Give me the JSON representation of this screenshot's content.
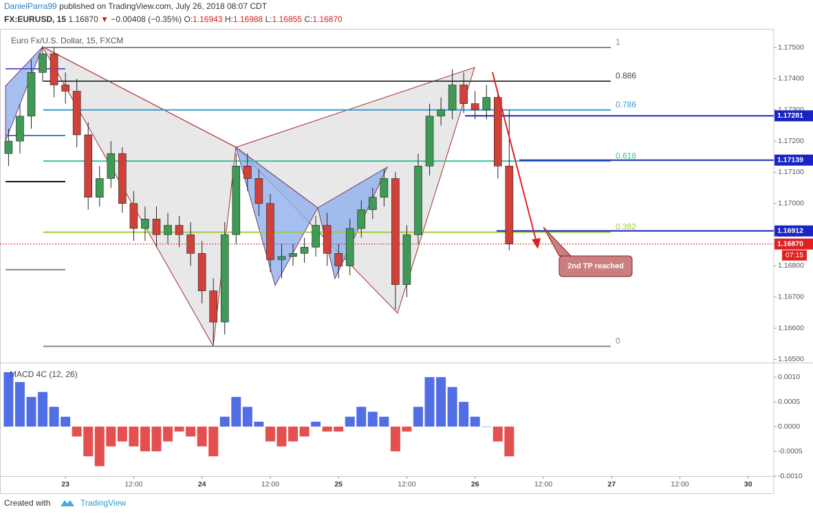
{
  "header": {
    "author": "DanielParra99",
    "published": "published on TradingView.com, July 26, 2018 08:07 CDT",
    "symbol": "FX:EURUSD, 15",
    "last": "1.16870",
    "arrow": "▼",
    "change": "−0.00408 (−0.35%)",
    "ohlc": [
      {
        "label": "O:",
        "value": "1.16943"
      },
      {
        "label": "H:",
        "value": "1.16988"
      },
      {
        "label": "L:",
        "value": "1.16855"
      },
      {
        "label": "C:",
        "value": "1.16870"
      }
    ]
  },
  "annotation": "2nd TP reached",
  "countdown": "07:15",
  "footer": {
    "created": "Created with",
    "brand": "TradingView"
  },
  "chart_data": [
    {
      "type": "candlestick",
      "title": "Euro Fx/U.S. Dollar, 15, FXCM",
      "x": [
        -10,
        -8,
        -6,
        -4,
        -2,
        0,
        2,
        4,
        6,
        8,
        10,
        12,
        14,
        16,
        18,
        20,
        22,
        24,
        26,
        28,
        30,
        32,
        34,
        36,
        38,
        40,
        42,
        44,
        46,
        48,
        50,
        52,
        54,
        56,
        58,
        60,
        62,
        64,
        66,
        68,
        70,
        72,
        74,
        76,
        78
      ],
      "open": [
        1.1716,
        1.172,
        1.1728,
        1.1742,
        1.1748,
        1.1738,
        1.1736,
        1.1722,
        1.1702,
        1.1708,
        1.1716,
        1.17,
        1.1692,
        1.1695,
        1.169,
        1.1693,
        1.169,
        1.1684,
        1.1672,
        1.1662,
        1.169,
        1.1712,
        1.1708,
        1.17,
        1.1682,
        1.1683,
        1.1684,
        1.1686,
        1.1693,
        1.1684,
        1.168,
        1.1692,
        1.1698,
        1.1702,
        1.1708,
        1.1674,
        1.169,
        1.1712,
        1.1728,
        1.173,
        1.1738,
        1.1732,
        1.173,
        1.1734,
        1.1712
      ],
      "high": [
        1.1724,
        1.1732,
        1.1746,
        1.175,
        1.175,
        1.1742,
        1.174,
        1.1726,
        1.1712,
        1.172,
        1.1718,
        1.1704,
        1.1699,
        1.1699,
        1.1697,
        1.1696,
        1.1694,
        1.1688,
        1.1676,
        1.1694,
        1.1716,
        1.1716,
        1.1711,
        1.1703,
        1.1687,
        1.1687,
        1.1689,
        1.1696,
        1.1697,
        1.1687,
        1.1695,
        1.1701,
        1.1705,
        1.1711,
        1.171,
        1.1693,
        1.1716,
        1.1732,
        1.1734,
        1.1743,
        1.1742,
        1.1736,
        1.1738,
        1.1736,
        1.173
      ],
      "low": [
        1.1712,
        1.1716,
        1.1724,
        1.1739,
        1.1734,
        1.1732,
        1.1718,
        1.1698,
        1.1699,
        1.1705,
        1.1697,
        1.1688,
        1.1688,
        1.1686,
        1.1687,
        1.1686,
        1.168,
        1.1668,
        1.1655,
        1.1658,
        1.1687,
        1.1704,
        1.1696,
        1.1678,
        1.1676,
        1.168,
        1.1681,
        1.1683,
        1.168,
        1.1676,
        1.1677,
        1.1689,
        1.1695,
        1.1699,
        1.1666,
        1.167,
        1.1687,
        1.1709,
        1.1725,
        1.1727,
        1.1729,
        1.1727,
        1.1727,
        1.1708,
        1.1685
      ],
      "close": [
        1.172,
        1.1728,
        1.1742,
        1.1748,
        1.1738,
        1.1736,
        1.1722,
        1.1702,
        1.1708,
        1.1716,
        1.17,
        1.1692,
        1.1695,
        1.169,
        1.1693,
        1.169,
        1.1684,
        1.1672,
        1.1662,
        1.169,
        1.1712,
        1.1708,
        1.17,
        1.1682,
        1.1683,
        1.1684,
        1.1686,
        1.1693,
        1.1684,
        1.168,
        1.1692,
        1.1698,
        1.1702,
        1.1708,
        1.1674,
        1.169,
        1.1712,
        1.1728,
        1.173,
        1.1738,
        1.1732,
        1.173,
        1.1734,
        1.1712,
        1.1687
      ],
      "up_color": "#3f9a55",
      "down_color": "#d0413a",
      "xlim": [
        -11.5,
        124.5
      ],
      "xticks": [
        {
          "value": 0,
          "label": "23"
        },
        {
          "value": 12,
          "label": "12:00"
        },
        {
          "value": 24,
          "label": "24"
        },
        {
          "value": 36,
          "label": "12:00"
        },
        {
          "value": 48,
          "label": "25"
        },
        {
          "value": 60,
          "label": "12:00"
        },
        {
          "value": 72,
          "label": "26"
        },
        {
          "value": 84,
          "label": "12:00"
        },
        {
          "value": 96,
          "label": "27"
        },
        {
          "value": 108,
          "label": "12:00"
        },
        {
          "value": 120,
          "label": "30"
        }
      ],
      "ylim": [
        1.1649,
        1.17553
      ],
      "yticks": [
        {
          "value": 1.165,
          "label": "1.16500"
        },
        {
          "value": 1.166,
          "label": "1.16600"
        },
        {
          "value": 1.167,
          "label": "1.16700"
        },
        {
          "value": 1.168,
          "label": "1.16800"
        },
        {
          "value": 1.169,
          "label": "1.16900"
        },
        {
          "value": 1.17,
          "label": "1.17000"
        },
        {
          "value": 1.171,
          "label": "1.17100"
        },
        {
          "value": 1.172,
          "label": "1.17200"
        },
        {
          "value": 1.173,
          "label": "1.17300"
        },
        {
          "value": 1.174,
          "label": "1.17400"
        },
        {
          "value": 1.175,
          "label": "1.17500"
        }
      ],
      "fib_levels": [
        {
          "ratio": 1,
          "price": 1.175,
          "color": "#888888"
        },
        {
          "ratio": 0.886,
          "price": 1.17392,
          "color": "#444444"
        },
        {
          "ratio": 0.786,
          "price": 1.173,
          "color": "#3d9bd0"
        },
        {
          "ratio": 0.618,
          "price": 1.17136,
          "color": "#3cbf9e"
        },
        {
          "ratio": 0.382,
          "price": 1.16908,
          "color": "#9ccc3d"
        },
        {
          "ratio": 0,
          "price": 1.16542,
          "color": "#888888"
        }
      ],
      "price_labels": [
        {
          "value": 1.17281,
          "color": "#1a23c4"
        },
        {
          "value": 1.17139,
          "color": "#1a23c4"
        },
        {
          "value": 1.16912,
          "color": "#1a23c4"
        },
        {
          "value": 1.1687,
          "label": "1.16870",
          "color": "#e02020"
        }
      ]
    },
    {
      "type": "bar",
      "title": "MACD 4C (12, 26)",
      "x": [
        -10,
        -8,
        -6,
        -4,
        -2,
        0,
        2,
        4,
        6,
        8,
        10,
        12,
        14,
        16,
        18,
        20,
        22,
        24,
        26,
        28,
        30,
        32,
        34,
        36,
        38,
        40,
        42,
        44,
        46,
        48,
        50,
        52,
        54,
        56,
        58,
        60,
        62,
        64,
        66,
        68,
        70,
        72,
        74,
        76,
        78
      ],
      "values": [
        0.0011,
        0.0009,
        0.0006,
        0.0007,
        0.0004,
        0.0002,
        -0.0002,
        -0.0006,
        -0.0008,
        -0.0004,
        -0.0003,
        -0.0004,
        -0.0005,
        -0.0005,
        -0.0003,
        -0.0001,
        -0.0002,
        -0.0004,
        -0.0006,
        0.0002,
        0.0006,
        0.0004,
        0.0001,
        -0.0003,
        -0.0004,
        -0.0003,
        -0.0002,
        0.0001,
        -0.0001,
        -0.0001,
        0.0002,
        0.0004,
        0.0003,
        0.0002,
        -0.0005,
        -0.0001,
        0.0004,
        0.001,
        0.001,
        0.0008,
        0.0005,
        0.0002,
        0,
        -0.0003,
        -0.0006
      ],
      "up_color": "#3355e0",
      "down_color": "#e03030",
      "ylim": [
        -0.001,
        0.00128
      ],
      "yticks": [
        {
          "value": -0.001,
          "label": "-0.0010"
        },
        {
          "value": -0.0005,
          "label": "-0.0005"
        },
        {
          "value": 0,
          "label": "0.0000"
        },
        {
          "value": 0.0005,
          "label": "0.0005"
        },
        {
          "value": 0.001,
          "label": "0.0010"
        }
      ]
    }
  ]
}
